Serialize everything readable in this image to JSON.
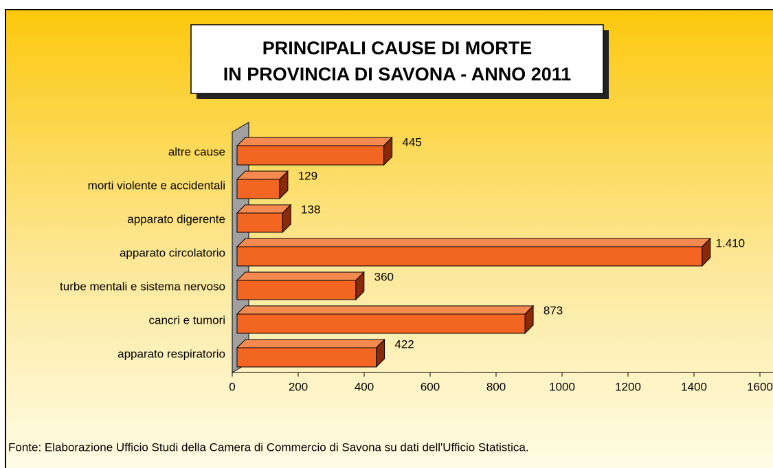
{
  "chart_data": {
    "type": "bar",
    "orientation": "horizontal",
    "title": [
      "PRINCIPALI CAUSE DI MORTE",
      "IN PROVINCIA DI SAVONA - ANNO 2011"
    ],
    "categories": [
      "apparato respiratorio",
      "cancri e tumori",
      "turbe mentali e sistema nervoso",
      "apparato circolatorio",
      "apparato digerente",
      "morti violente e accidentali",
      "altre cause"
    ],
    "values": [
      422,
      873,
      360,
      1410,
      138,
      129,
      445
    ],
    "value_labels": [
      "422",
      "873",
      "360",
      "1.410",
      "138",
      "129",
      "445"
    ],
    "color": "#f26522",
    "xlim": [
      0,
      1600
    ],
    "xticks": [
      0,
      200,
      400,
      600,
      800,
      1000,
      1200,
      1400,
      1600
    ],
    "source": "Fonte: Elaborazione Ufficio Studi della Camera di Commercio di Savona su dati dell'Ufficio Statistica."
  }
}
